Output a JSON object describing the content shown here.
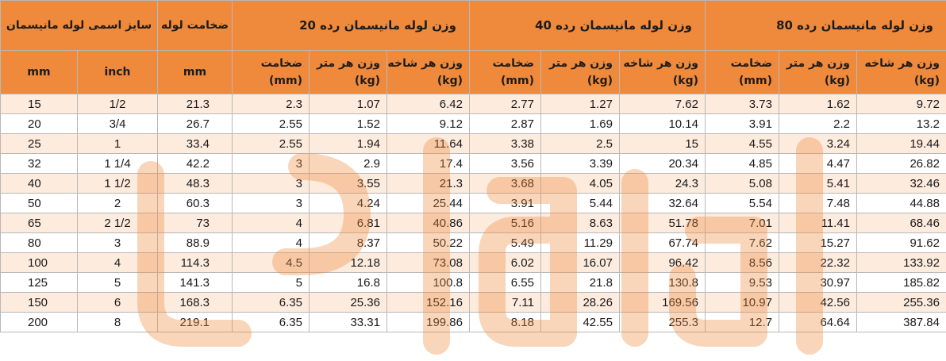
{
  "header": {
    "nominal_size": "سایز اسمی لوله مانیسمان",
    "wall_thickness": "ضخامت لوله",
    "sch20": "وزن لوله مانیسمان رده 20",
    "sch40": "وزن لوله مانیسمان رده 40",
    "sch80": "وزن لوله مانیسمان رده 80"
  },
  "subheader": {
    "mm": "mm",
    "inch": "inch",
    "mm2": "mm",
    "thickness": "ضخامت",
    "thickness_unit": "(mm)",
    "weight_per_meter": "وزن هر متر",
    "weight_per_meter_unit": "(kg)",
    "weight_per_branch": "وزن هر شاخه",
    "weight_per_branch_unit": "(kg)"
  },
  "rows": [
    [
      "15",
      "1/2",
      "21.3",
      "2.3",
      "1.07",
      "6.42",
      "2.77",
      "1.27",
      "7.62",
      "3.73",
      "1.62",
      "9.72"
    ],
    [
      "20",
      "3/4",
      "26.7",
      "2.55",
      "1.52",
      "9.12",
      "2.87",
      "1.69",
      "10.14",
      "3.91",
      "2.2",
      "13.2"
    ],
    [
      "25",
      "1",
      "33.4",
      "2.55",
      "1.94",
      "11.64",
      "3.38",
      "2.5",
      "15",
      "4.55",
      "3.24",
      "19.44"
    ],
    [
      "32",
      "1 1/4",
      "42.2",
      "3",
      "2.9",
      "17.4",
      "3.56",
      "3.39",
      "20.34",
      "4.85",
      "4.47",
      "26.82"
    ],
    [
      "40",
      "1 1/2",
      "48.3",
      "3",
      "3.55",
      "21.3",
      "3.68",
      "4.05",
      "24.3",
      "5.08",
      "5.41",
      "32.46"
    ],
    [
      "50",
      "2",
      "60.3",
      "3",
      "4.24",
      "25.44",
      "3.91",
      "5.44",
      "32.64",
      "5.54",
      "7.48",
      "44.88"
    ],
    [
      "65",
      "2 1/2",
      "73",
      "4",
      "6.81",
      "40.86",
      "5.16",
      "8.63",
      "51.78",
      "7.01",
      "11.41",
      "68.46"
    ],
    [
      "80",
      "3",
      "88.9",
      "4",
      "8.37",
      "50.22",
      "5.49",
      "11.29",
      "67.74",
      "7.62",
      "15.27",
      "91.62"
    ],
    [
      "100",
      "4",
      "114.3",
      "4.5",
      "12.18",
      "73.08",
      "6.02",
      "16.07",
      "96.42",
      "8.56",
      "22.32",
      "133.92"
    ],
    [
      "125",
      "5",
      "141.3",
      "5",
      "16.8",
      "100.8",
      "6.55",
      "21.8",
      "130.8",
      "9.53",
      "30.97",
      "185.82"
    ],
    [
      "150",
      "6",
      "168.3",
      "6.35",
      "25.36",
      "152.16",
      "7.11",
      "28.26",
      "169.56",
      "10.97",
      "42.56",
      "255.36"
    ],
    [
      "200",
      "8",
      "219.1",
      "6.35",
      "33.31",
      "199.86",
      "8.18",
      "42.55",
      "255.3",
      "12.7",
      "64.64",
      "387.84"
    ]
  ],
  "colors": {
    "header_bg": "#ef8a3c",
    "row_alt_bg": "#fbdbc2",
    "watermark": "#ef8a3c"
  },
  "watermark_icon": "brand-watermark-logo"
}
